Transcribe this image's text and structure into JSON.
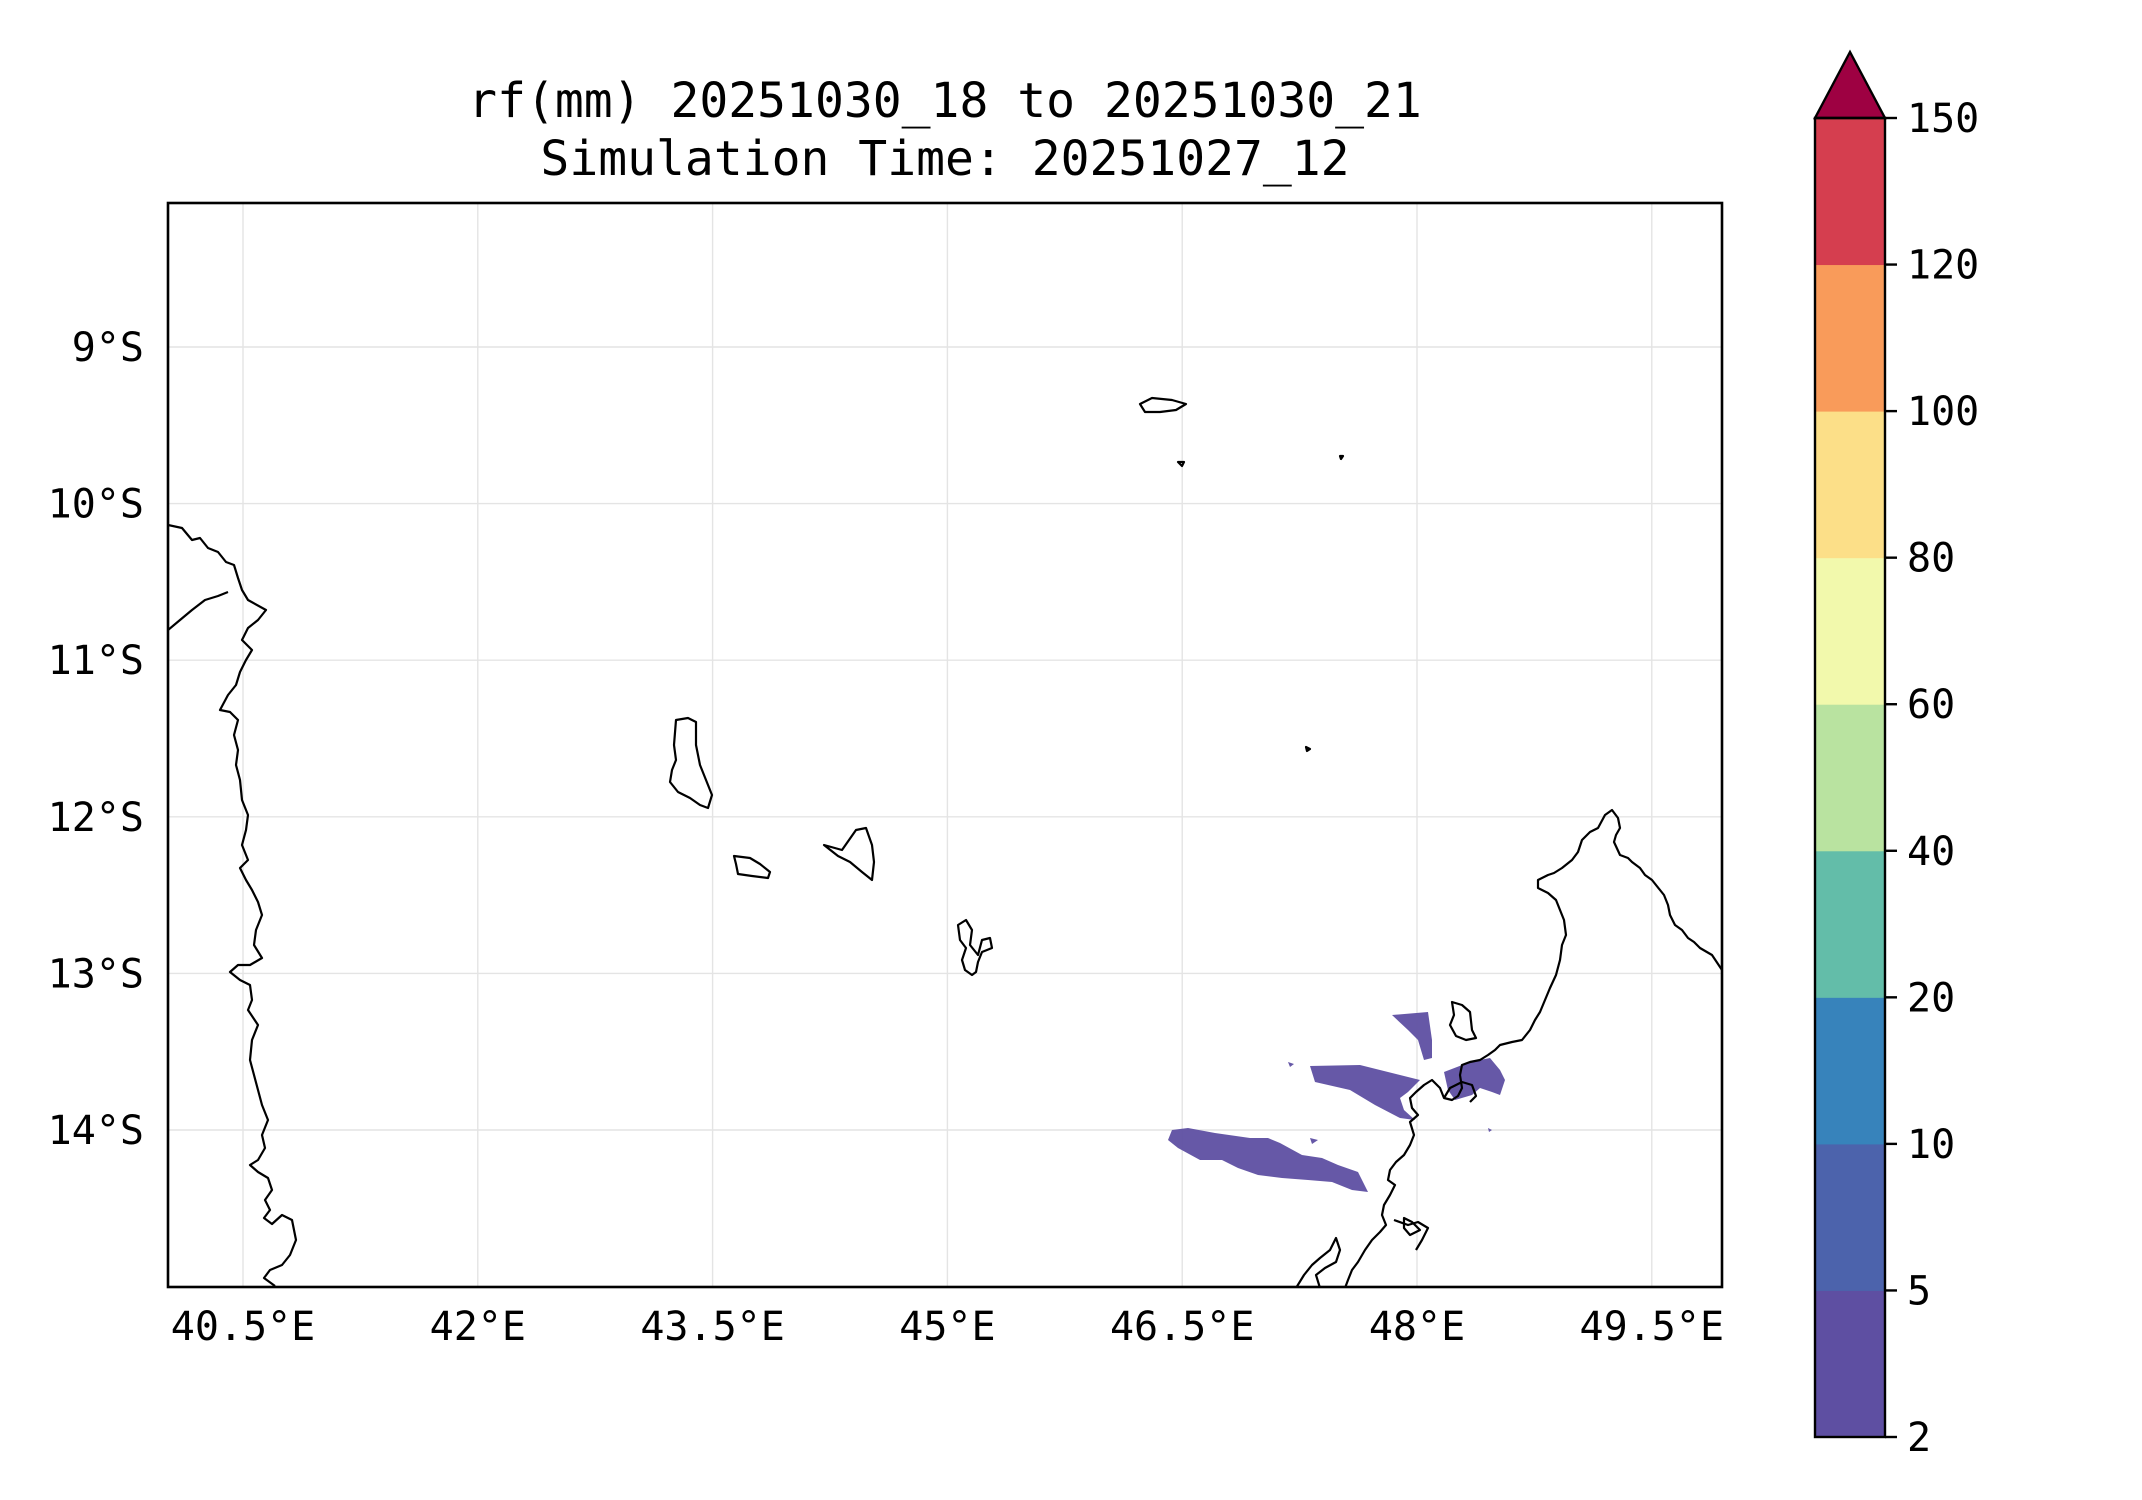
{
  "title": {
    "line1": "rf(mm) 20251030_18 to 20251030_21",
    "line2": "Simulation Time: 20251027_12"
  },
  "map": {
    "lon_ticks": [
      40.5,
      42,
      43.5,
      45,
      46.5,
      48,
      49.5
    ],
    "lon_labels": [
      "40.5°E",
      "42°E",
      "43.5°E",
      "45°E",
      "46.5°E",
      "48°E",
      "49.5°E"
    ],
    "lat_ticks": [
      -9,
      -10,
      -11,
      -12,
      -13,
      -14
    ],
    "lat_labels": [
      "9°S",
      "10°S",
      "11°S",
      "12°S",
      "13°S",
      "14°S"
    ],
    "gridlines": true,
    "rain_color": "#5e4fa2",
    "rain_category": "2–5 mm"
  },
  "colorbar": {
    "levels": [
      "2",
      "5",
      "10",
      "20",
      "40",
      "60",
      "80",
      "100",
      "120",
      "150"
    ],
    "colors": [
      "#5e4fa2",
      "#4c63ac",
      "#3783bb",
      "#63bda9",
      "#b9e3a0",
      "#f2f9ac",
      "#fcdf88",
      "#f99b5a",
      "#d53e4f"
    ],
    "extend_color": "#9e0142",
    "extend": "max"
  }
}
